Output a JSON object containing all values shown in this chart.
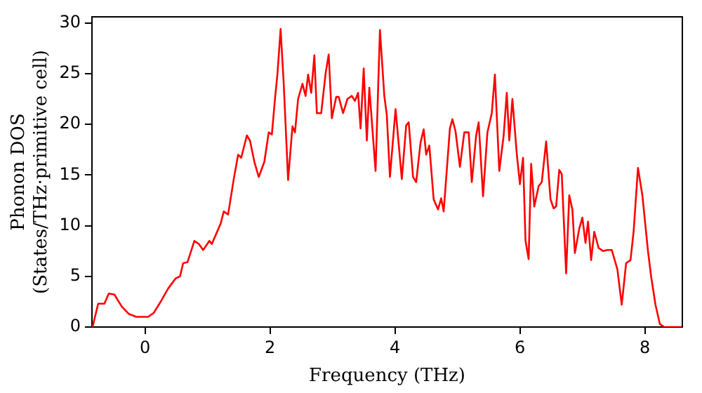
{
  "chart_data": {
    "type": "line",
    "xlabel": "Frequency (THz)",
    "ylabel": "Phonon DOS\n(States/THz·primitive cell)",
    "xlim": [
      -0.85,
      8.6
    ],
    "ylim": [
      0,
      30.6
    ],
    "xticks": [
      0,
      2,
      4,
      6,
      8
    ],
    "yticks": [
      0,
      5,
      10,
      15,
      20,
      25,
      30
    ],
    "grid": false,
    "legend": false,
    "marker": "none",
    "line_style": "solid",
    "series": [
      {
        "color": "#ff0000",
        "x": [
          -0.84,
          -0.75,
          -0.65,
          -0.58,
          -0.49,
          -0.37,
          -0.26,
          -0.14,
          0.05,
          0.14,
          0.26,
          0.37,
          0.49,
          0.56,
          0.61,
          0.68,
          0.79,
          0.86,
          0.93,
          1.03,
          1.07,
          1.14,
          1.21,
          1.26,
          1.33,
          1.42,
          1.49,
          1.54,
          1.63,
          1.68,
          1.75,
          1.82,
          1.91,
          1.98,
          2.03,
          2.08,
          2.12,
          2.17,
          2.22,
          2.29,
          2.36,
          2.4,
          2.45,
          2.52,
          2.57,
          2.61,
          2.66,
          2.71,
          2.75,
          2.82,
          2.89,
          2.94,
          2.99,
          3.06,
          3.1,
          3.17,
          3.24,
          3.31,
          3.36,
          3.41,
          3.45,
          3.5,
          3.55,
          3.59,
          3.69,
          3.76,
          3.83,
          3.87,
          3.92,
          4.01,
          4.11,
          4.18,
          4.22,
          4.29,
          4.34,
          4.41,
          4.46,
          4.5,
          4.55,
          4.62,
          4.69,
          4.74,
          4.78,
          4.88,
          4.92,
          4.97,
          5.04,
          5.11,
          5.18,
          5.23,
          5.3,
          5.34,
          5.41,
          5.48,
          5.55,
          5.6,
          5.67,
          5.74,
          5.79,
          5.83,
          5.88,
          5.95,
          6.0,
          6.05,
          6.09,
          6.14,
          6.18,
          6.23,
          6.3,
          6.35,
          6.42,
          6.49,
          6.54,
          6.58,
          6.63,
          6.67,
          6.74,
          6.79,
          6.84,
          6.88,
          6.95,
          7.0,
          7.05,
          7.09,
          7.14,
          7.19,
          7.26,
          7.33,
          7.4,
          7.47,
          7.56,
          7.63,
          7.7,
          7.77,
          7.82,
          7.89,
          7.96,
          8.05,
          8.1,
          8.17,
          8.24,
          8.31,
          8.6
        ],
        "values": [
          0,
          2.3,
          2.3,
          3.3,
          3.2,
          2.0,
          1.3,
          1.0,
          1.0,
          1.4,
          2.6,
          3.8,
          4.8,
          5.0,
          6.3,
          6.4,
          8.5,
          8.2,
          7.6,
          8.5,
          8.2,
          9.2,
          10.2,
          11.4,
          11.1,
          14.6,
          17.0,
          16.7,
          18.9,
          18.4,
          16.3,
          14.8,
          16.3,
          19.2,
          19.0,
          22.5,
          25.0,
          29.4,
          24.0,
          14.5,
          19.8,
          19.2,
          22.5,
          24.0,
          22.8,
          24.9,
          23.1,
          26.8,
          21.1,
          21.1,
          25.0,
          26.9,
          20.6,
          22.7,
          22.7,
          21.1,
          22.5,
          22.8,
          22.3,
          23.1,
          19.6,
          25.5,
          18.4,
          23.6,
          15.4,
          29.3,
          22.8,
          20.9,
          14.8,
          21.5,
          14.6,
          19.9,
          20.2,
          14.8,
          14.3,
          18.2,
          19.5,
          17.0,
          17.9,
          12.6,
          11.6,
          12.7,
          11.4,
          19.6,
          20.5,
          19.3,
          15.8,
          19.2,
          19.2,
          14.3,
          18.9,
          20.2,
          12.9,
          19.2,
          21.1,
          24.9,
          15.4,
          18.9,
          23.1,
          18.4,
          22.5,
          17.1,
          14.1,
          16.7,
          8.5,
          6.7,
          16.1,
          11.9,
          13.9,
          14.3,
          18.3,
          12.6,
          11.7,
          11.9,
          15.5,
          15.1,
          5.3,
          13.0,
          11.6,
          7.3,
          9.7,
          10.8,
          8.3,
          10.4,
          6.6,
          9.4,
          7.8,
          7.5,
          7.6,
          7.6,
          5.7,
          2.2,
          6.3,
          6.6,
          9.4,
          15.7,
          13.0,
          7.5,
          5.0,
          2.2,
          0.3,
          0,
          0
        ]
      }
    ]
  }
}
